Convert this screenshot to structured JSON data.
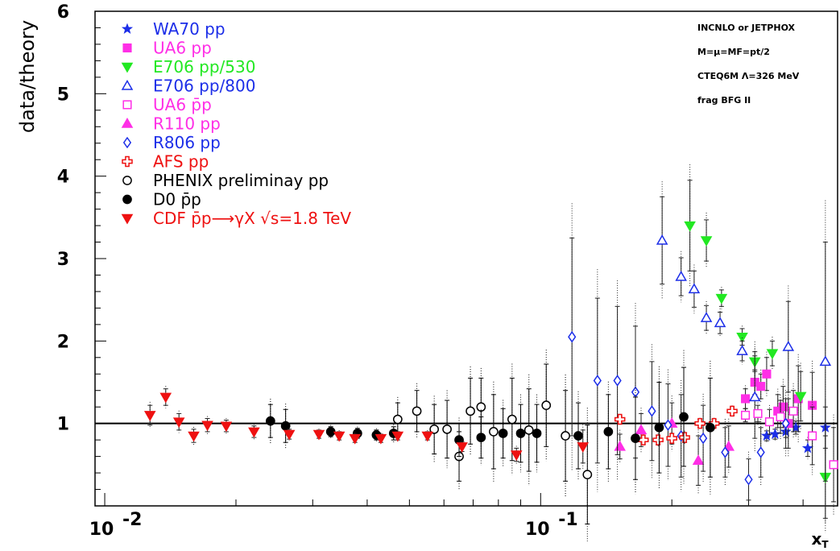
{
  "chart_data": {
    "type": "scatter",
    "title": "",
    "ylabel": "data/theory",
    "xlabel": "x_T",
    "x_scale": "log",
    "xlim": [
      0.0095,
      0.48
    ],
    "ylim": [
      0,
      6
    ],
    "y_ticks": [
      1,
      2,
      3,
      4,
      5,
      6
    ],
    "x_tick_labels": [
      {
        "value": 0.01,
        "label": "10",
        "exp": "-2"
      },
      {
        "value": 0.1,
        "label": "10",
        "exp": "-1"
      }
    ],
    "reference_line": 1,
    "legend_position": "top-left",
    "annotations": [
      "INCNLO or JETPHOX",
      "M=μ=MF=pt/2",
      "CTEQ6M Λ=326 MeV",
      "frag  BFG II"
    ],
    "series": [
      {
        "name": "WA70 pp",
        "marker": "star",
        "color": "#1c2ee8",
        "filled": true,
        "points": [
          [
            0.33,
            0.85
          ],
          [
            0.345,
            0.87
          ],
          [
            0.365,
            0.9
          ],
          [
            0.385,
            0.95
          ],
          [
            0.41,
            0.7
          ],
          [
            0.45,
            0.95
          ]
        ],
        "errors": [
          0.06,
          0.06,
          0.07,
          0.08,
          0.1,
          0.25
        ]
      },
      {
        "name": "UA6 pp",
        "marker": "square",
        "color": "#ff2ee6",
        "filled": true,
        "points": [
          [
            0.295,
            1.3
          ],
          [
            0.31,
            1.5
          ],
          [
            0.32,
            1.45
          ],
          [
            0.33,
            1.6
          ],
          [
            0.35,
            1.15
          ],
          [
            0.36,
            1.2
          ],
          [
            0.37,
            1.0
          ],
          [
            0.39,
            1.3
          ],
          [
            0.42,
            1.22
          ]
        ],
        "errors": [
          0.12,
          0.15,
          0.15,
          0.2,
          0.2,
          0.25,
          0.3,
          0.4,
          0.4
        ]
      },
      {
        "name": "E706 pp/530",
        "marker": "triangle-down",
        "color": "#22e822",
        "filled": true,
        "points": [
          [
            0.22,
            3.4
          ],
          [
            0.24,
            3.22
          ],
          [
            0.26,
            2.52
          ],
          [
            0.29,
            2.05
          ],
          [
            0.31,
            1.75
          ],
          [
            0.34,
            1.85
          ],
          [
            0.395,
            1.33
          ],
          [
            0.45,
            0.35
          ]
        ],
        "errors": [
          0.55,
          0.25,
          0.1,
          0.1,
          0.12,
          0.15,
          0.3,
          0.5
        ]
      },
      {
        "name": "E706 pp/800",
        "marker": "triangle-up",
        "color": "#1c2ee8",
        "filled": false,
        "points": [
          [
            0.19,
            3.22
          ],
          [
            0.21,
            2.78
          ],
          [
            0.225,
            2.63
          ],
          [
            0.24,
            2.28
          ],
          [
            0.258,
            2.22
          ],
          [
            0.29,
            1.88
          ],
          [
            0.31,
            1.32
          ],
          [
            0.37,
            1.93
          ],
          [
            0.45,
            1.75
          ]
        ],
        "errors": [
          0.53,
          0.23,
          0.22,
          0.15,
          0.13,
          0.12,
          0.5,
          0.55,
          1.45
        ]
      },
      {
        "name": "UA6 p̄p",
        "marker": "square",
        "color": "#ff2ee6",
        "filled": false,
        "points": [
          [
            0.295,
            1.1
          ],
          [
            0.315,
            1.12
          ],
          [
            0.335,
            1.02
          ],
          [
            0.355,
            1.08
          ],
          [
            0.38,
            1.15
          ],
          [
            0.42,
            0.85
          ],
          [
            0.47,
            0.5
          ]
        ],
        "errors": [
          0.08,
          0.1,
          0.15,
          0.2,
          0.25,
          0.35,
          0.45
        ]
      },
      {
        "name": "R110 pp",
        "marker": "triangle-up",
        "color": "#ff2ee6",
        "filled": true,
        "points": [
          [
            0.152,
            0.72
          ],
          [
            0.17,
            0.92
          ],
          [
            0.2,
            1.0
          ],
          [
            0.23,
            0.55
          ],
          [
            0.27,
            0.72
          ]
        ],
        "errors": [
          0.15,
          0.2,
          0.25,
          0.3,
          0.25
        ]
      },
      {
        "name": "R806 pp",
        "marker": "diamond",
        "color": "#1c2ee8",
        "filled": false,
        "points": [
          [
            0.118,
            2.05
          ],
          [
            0.135,
            1.52
          ],
          [
            0.15,
            1.52
          ],
          [
            0.165,
            1.38
          ],
          [
            0.18,
            1.15
          ],
          [
            0.196,
            0.98
          ],
          [
            0.21,
            0.85
          ],
          [
            0.236,
            0.82
          ],
          [
            0.265,
            0.65
          ],
          [
            0.3,
            0.32
          ],
          [
            0.32,
            0.65
          ],
          [
            0.365,
            1.0
          ]
        ],
        "errors": [
          1.2,
          1.0,
          0.9,
          0.8,
          0.6,
          0.5,
          0.5,
          0.4,
          0.3,
          0.25,
          0.3,
          0.3
        ]
      },
      {
        "name": "AFS pp",
        "marker": "cross",
        "color": "#ee1111",
        "filled": false,
        "points": [
          [
            0.152,
            1.05
          ],
          [
            0.172,
            0.8
          ],
          [
            0.186,
            0.8
          ],
          [
            0.2,
            0.82
          ],
          [
            0.214,
            0.83
          ],
          [
            0.232,
            1.0
          ],
          [
            0.25,
            1.0
          ],
          [
            0.275,
            1.15
          ]
        ],
        "errors": [
          0.04,
          0.05,
          0.06,
          0.06,
          0.06,
          0.05,
          0.05,
          0.05
        ]
      },
      {
        "name": "PHENIX preliminay pp",
        "marker": "circle",
        "color": "#000000",
        "filled": false,
        "points": [
          [
            0.047,
            1.05
          ],
          [
            0.052,
            1.15
          ],
          [
            0.057,
            0.93
          ],
          [
            0.061,
            0.93
          ],
          [
            0.065,
            0.6
          ],
          [
            0.069,
            1.15
          ],
          [
            0.073,
            1.2
          ],
          [
            0.078,
            0.9
          ],
          [
            0.086,
            1.05
          ],
          [
            0.094,
            0.92
          ],
          [
            0.103,
            1.22
          ],
          [
            0.114,
            0.85
          ],
          [
            0.128,
            0.38
          ]
        ],
        "errors": [
          0.2,
          0.25,
          0.3,
          0.35,
          0.3,
          0.4,
          0.35,
          0.45,
          0.5,
          0.5,
          0.5,
          0.55,
          0.6
        ]
      },
      {
        "name": "D0 p̄p",
        "marker": "circle",
        "color": "#000000",
        "filled": true,
        "points": [
          [
            0.024,
            1.03
          ],
          [
            0.026,
            0.97
          ],
          [
            0.033,
            0.9
          ],
          [
            0.038,
            0.88
          ],
          [
            0.042,
            0.86
          ],
          [
            0.046,
            0.88
          ],
          [
            0.065,
            0.8
          ],
          [
            0.073,
            0.83
          ],
          [
            0.082,
            0.88
          ],
          [
            0.09,
            0.88
          ],
          [
            0.098,
            0.88
          ],
          [
            0.122,
            0.85
          ],
          [
            0.143,
            0.9
          ],
          [
            0.165,
            0.82
          ],
          [
            0.187,
            0.95
          ],
          [
            0.213,
            1.08
          ],
          [
            0.245,
            0.95
          ]
        ],
        "errors": [
          0.2,
          0.2,
          0.06,
          0.06,
          0.06,
          0.08,
          0.2,
          0.25,
          0.3,
          0.35,
          0.35,
          0.4,
          0.45,
          0.5,
          0.55,
          0.6,
          0.6
        ]
      },
      {
        "name": "CDF p̄p⟶γX √s=1.8 TeV",
        "marker": "triangle-down",
        "color": "#ee1111",
        "filled": true,
        "points": [
          [
            0.0127,
            1.1
          ],
          [
            0.0138,
            1.32
          ],
          [
            0.0148,
            1.02
          ],
          [
            0.016,
            0.85
          ],
          [
            0.0172,
            0.98
          ],
          [
            0.019,
            0.97
          ],
          [
            0.022,
            0.9
          ],
          [
            0.0265,
            0.87
          ],
          [
            0.031,
            0.87
          ],
          [
            0.0345,
            0.85
          ],
          [
            0.0375,
            0.82
          ],
          [
            0.043,
            0.82
          ],
          [
            0.047,
            0.85
          ],
          [
            0.055,
            0.85
          ],
          [
            0.066,
            0.72
          ],
          [
            0.088,
            0.62
          ],
          [
            0.125,
            0.72
          ]
        ],
        "errors": [
          0.12,
          0.1,
          0.1,
          0.08,
          0.08,
          0.07,
          0.07,
          0.06,
          0.05,
          0.05,
          0.05,
          0.05,
          0.05,
          0.05,
          0.06,
          0.08,
          0.2
        ]
      }
    ]
  }
}
